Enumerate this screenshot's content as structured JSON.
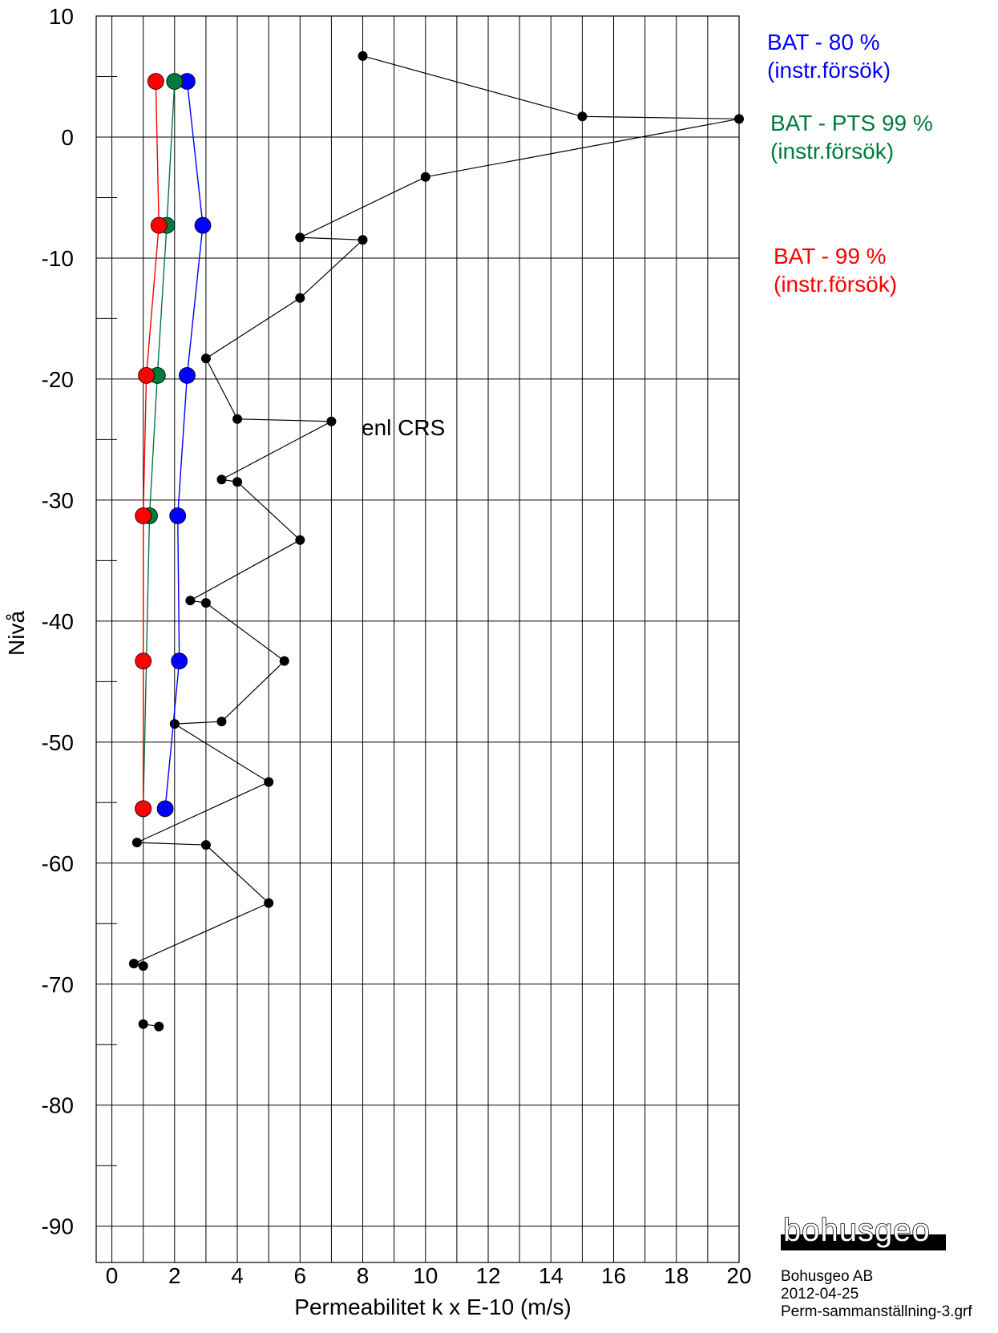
{
  "chart_data": {
    "type": "scatter",
    "title": "",
    "xlabel": "Permeabilitet k x E-10 (m/s)",
    "ylabel": "Nivå",
    "xlim": [
      -0.5,
      20
    ],
    "ylim": [
      -93,
      10
    ],
    "x_ticks": [
      0,
      2,
      4,
      6,
      8,
      10,
      12,
      14,
      16,
      18,
      20
    ],
    "y_ticks": [
      10,
      0,
      -10,
      -20,
      -30,
      -40,
      -50,
      -60,
      -70,
      -80,
      -90
    ],
    "grid": true,
    "legend_position": "right",
    "series": [
      {
        "name": "enl CRS",
        "color": "#000000",
        "connected": true,
        "points": [
          {
            "x": 8,
            "y": 6.7
          },
          {
            "x": 15,
            "y": 1.7
          },
          {
            "x": 20,
            "y": 1.5
          },
          {
            "x": 10,
            "y": -3.3
          },
          {
            "x": 6,
            "y": -8.3
          },
          {
            "x": 8,
            "y": -8.5
          },
          {
            "x": 6,
            "y": -13.3
          },
          {
            "x": 3,
            "y": -18.3
          },
          {
            "x": 4,
            "y": -23.3
          },
          {
            "x": 7,
            "y": -23.5
          },
          {
            "x": 3.5,
            "y": -28.3
          },
          {
            "x": 4,
            "y": -28.5
          },
          {
            "x": 6,
            "y": -33.3
          },
          {
            "x": 2.5,
            "y": -38.3
          },
          {
            "x": 3,
            "y": -38.5
          },
          {
            "x": 5.5,
            "y": -43.3
          },
          {
            "x": 3.5,
            "y": -48.3
          },
          {
            "x": 2,
            "y": -48.5
          },
          {
            "x": 5,
            "y": -53.3
          },
          {
            "x": 0.8,
            "y": -58.3
          },
          {
            "x": 3,
            "y": -58.5
          },
          {
            "x": 5,
            "y": -63.3
          },
          {
            "x": 0.7,
            "y": -68.3
          },
          {
            "x": 1,
            "y": -68.5
          }
        ],
        "loose_points": [
          {
            "x": 1,
            "y": -73.3
          },
          {
            "x": 1.5,
            "y": -73.5
          }
        ]
      },
      {
        "name": "BAT - 80 %",
        "color": "#0000ff",
        "connected": true,
        "points": [
          {
            "x": 2.4,
            "y": 4.6
          },
          {
            "x": 2.9,
            "y": -7.3
          },
          {
            "x": 2.4,
            "y": -19.7
          },
          {
            "x": 2.1,
            "y": -31.3
          },
          {
            "x": 2.15,
            "y": -43.3
          },
          {
            "x": 1.7,
            "y": -55.5
          }
        ]
      },
      {
        "name": "BAT - PTS 99 %",
        "color": "#007a3d",
        "connected": true,
        "points": [
          {
            "x": 2.0,
            "y": 4.6
          },
          {
            "x": 1.75,
            "y": -7.3
          },
          {
            "x": 1.45,
            "y": -19.7
          },
          {
            "x": 1.2,
            "y": -31.3
          },
          {
            "x": 1.0,
            "y": -55.5
          }
        ]
      },
      {
        "name": "BAT - 99 %",
        "color": "#ff0000",
        "connected": true,
        "points": [
          {
            "x": 1.4,
            "y": 4.6
          },
          {
            "x": 1.5,
            "y": -7.3
          },
          {
            "x": 1.1,
            "y": -19.7
          },
          {
            "x": 1.0,
            "y": -31.3
          },
          {
            "x": 1.0,
            "y": -43.3
          },
          {
            "x": 1.0,
            "y": -55.5
          }
        ]
      }
    ],
    "annotation": "enl CRS"
  },
  "legend": [
    {
      "line1": "BAT - 80 %",
      "line2": "(instr.försök)",
      "color": "#0000ff"
    },
    {
      "line1": "BAT - PTS 99 %",
      "line2": "(instr.försök)",
      "color": "#007a3d"
    },
    {
      "line1": "BAT - 99 %",
      "line2": "(instr.försök)",
      "color": "#ff0000"
    }
  ],
  "logo": {
    "text": "bohusgeo"
  },
  "footer": {
    "company": "Bohusgeo AB",
    "date": "2012-04-25",
    "filename": "Perm-sammanställning-3.grf"
  }
}
